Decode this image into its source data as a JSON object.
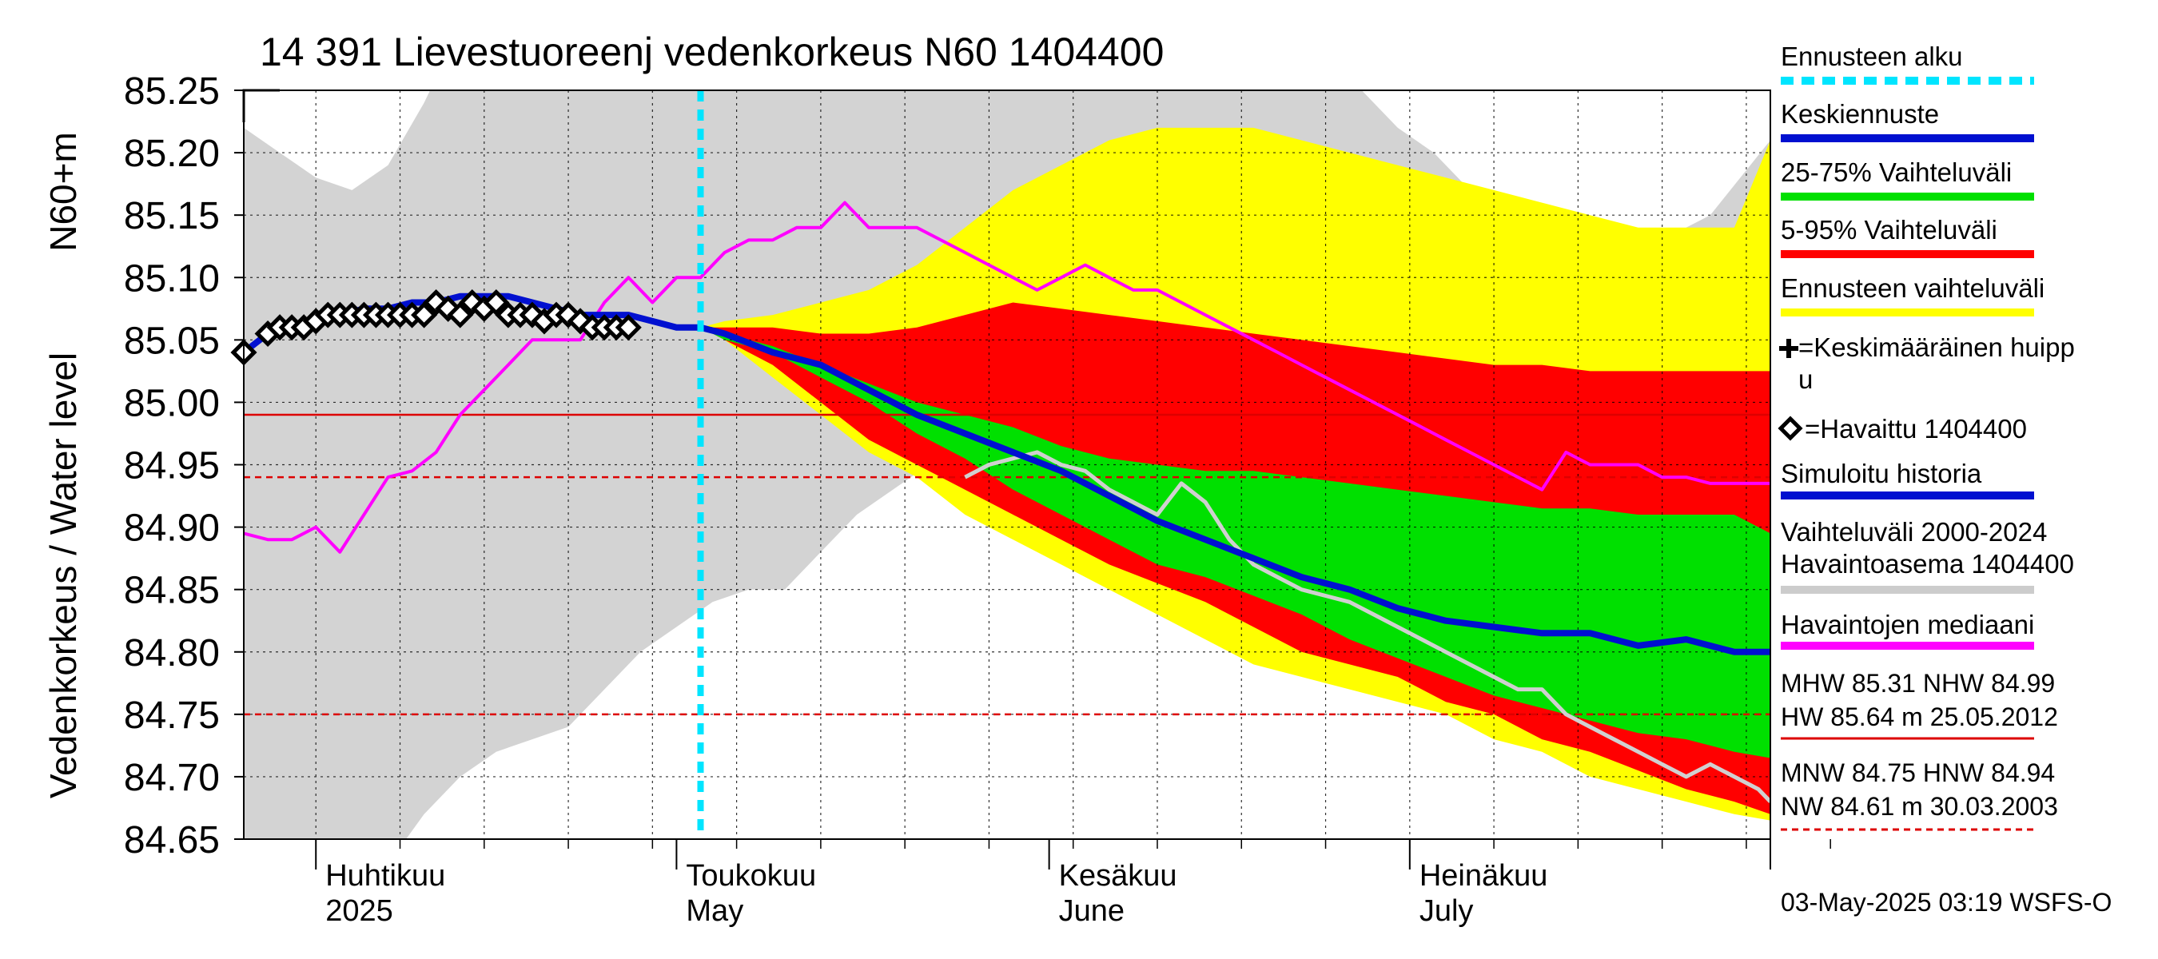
{
  "chart_data": {
    "type": "area",
    "title": "14 391 Lievestuoreenj vedenkorkeus N60 1404400",
    "ylabel": "Vedenkorkeus / Water level",
    "yunit": "N60+m",
    "ylim": [
      84.65,
      85.25
    ],
    "xlim": [
      "2025-03-26",
      "2025-07-31"
    ],
    "y_ticks": [
      "85.25",
      "85.20",
      "85.15",
      "85.10",
      "85.05",
      "85.00",
      "84.95",
      "84.90",
      "84.85",
      "84.80",
      "84.75",
      "84.70",
      "84.65"
    ],
    "month_labels": [
      {
        "date": "2025-04-01",
        "fi": "Huhtikuu",
        "en": "2025"
      },
      {
        "date": "2025-05-01",
        "fi": "Toukokuu",
        "en": "May"
      },
      {
        "date": "2025-06-01",
        "fi": "Kesäkuu",
        "en": "June"
      },
      {
        "date": "2025-07-01",
        "fi": "Heinäkuu",
        "en": "July"
      }
    ],
    "forecast_start": "2025-05-03",
    "grid": true,
    "legend_position": "right",
    "legend": [
      {
        "label": "Ennusteen alku",
        "color": "#00e5ff",
        "style": "dashed"
      },
      {
        "label": "Keskiennuste",
        "color": "#0010d0",
        "style": "solid"
      },
      {
        "label": "25-75% Vaihteluväli",
        "color": "#00e000",
        "style": "solid"
      },
      {
        "label": "5-95% Vaihteluväli",
        "color": "#ff0000",
        "style": "solid"
      },
      {
        "label": "Ennusteen vaihteluväli",
        "color": "#ffff00",
        "style": "solid"
      },
      {
        "label": "=Keskimääräinen huippu",
        "marker": "plus"
      },
      {
        "label": "=Havaittu 1404400",
        "marker": "diamond"
      },
      {
        "label": "Simuloitu historia",
        "color": "#0010d0",
        "style": "solid"
      },
      {
        "label": "Vaihteluväli 2000-2024 Havaintoasema 1404400",
        "color": "#cccccc",
        "style": "solid"
      },
      {
        "label": "Havaintojen mediaani",
        "color": "#ff00ff",
        "style": "solid"
      }
    ],
    "stats": {
      "line1": "MHW  85.31 NHW  84.99",
      "line2": "HW  85.64 m 25.05.2012",
      "line3": "MNW  84.75 HNW  84.94",
      "line4": "NW  84.61 m 30.03.2003"
    },
    "reference_lines": [
      {
        "name": "NHW",
        "value": 84.99,
        "color": "#dd0000",
        "style": "solid"
      },
      {
        "name": "HNW",
        "value": 84.94,
        "color": "#dd0000",
        "style": "dashed"
      },
      {
        "name": "MNW",
        "value": 84.75,
        "color": "#dd0000",
        "style": "dashed"
      }
    ],
    "footer": "03-May-2025 03:19 WSFS-O",
    "series": [
      {
        "name": "Vaihteluväli 2000-2024 Havaintoasema 1404400",
        "color": "#d3d3d3",
        "kind": "band",
        "x": [
          0,
          3,
          6,
          9,
          12,
          15,
          18,
          21,
          24,
          27,
          30,
          33,
          36,
          39,
          42,
          45,
          48,
          51,
          54,
          57,
          60,
          63,
          66,
          69,
          72,
          75,
          78,
          81,
          84,
          87,
          90,
          93,
          96,
          99,
          102,
          105,
          108,
          111,
          114,
          117,
          120,
          122,
          127
        ],
        "upper": [
          85.22,
          85.2,
          85.18,
          85.17,
          85.19,
          85.24,
          85.3,
          85.35,
          85.4,
          85.42,
          85.44,
          85.45,
          85.46,
          85.46,
          85.47,
          85.47,
          85.48,
          85.48,
          85.47,
          85.47,
          85.46,
          85.45,
          85.44,
          85.43,
          85.42,
          85.4,
          85.38,
          85.36,
          85.34,
          85.31,
          85.28,
          85.25,
          85.22,
          85.2,
          85.17,
          85.16,
          85.15,
          85.14,
          85.13,
          85.13,
          85.14,
          85.15,
          85.21
        ],
        "lower": [
          84.55,
          84.55,
          84.55,
          84.58,
          84.63,
          84.67,
          84.7,
          84.72,
          84.73,
          84.74,
          84.77,
          84.8,
          84.82,
          84.84,
          84.85,
          84.85,
          84.88,
          84.91,
          84.93,
          84.95,
          84.95,
          84.95,
          84.95,
          84.94,
          84.93,
          84.92,
          84.9,
          84.88,
          84.85,
          84.83,
          84.81,
          84.79,
          84.77,
          84.76,
          84.75,
          84.74,
          84.73,
          84.72,
          84.71,
          84.7,
          84.69,
          84.68,
          84.67
        ]
      },
      {
        "name": "Ennusteen vaihteluväli",
        "color": "#ffff00",
        "kind": "band",
        "x": [
          38,
          40,
          44,
          48,
          52,
          56,
          60,
          64,
          68,
          72,
          76,
          80,
          84,
          88,
          92,
          96,
          100,
          104,
          108,
          112,
          116,
          120,
          124,
          127
        ],
        "upper": [
          85.06,
          85.065,
          85.07,
          85.08,
          85.09,
          85.11,
          85.14,
          85.17,
          85.19,
          85.21,
          85.22,
          85.22,
          85.22,
          85.21,
          85.2,
          85.19,
          85.18,
          85.17,
          85.16,
          85.15,
          85.14,
          85.14,
          85.14,
          85.21
        ],
        "lower": [
          85.06,
          85.05,
          85.02,
          84.99,
          84.96,
          84.94,
          84.91,
          84.89,
          84.87,
          84.85,
          84.83,
          84.81,
          84.79,
          84.78,
          84.77,
          84.76,
          84.75,
          84.73,
          84.72,
          84.7,
          84.69,
          84.68,
          84.67,
          84.665
        ]
      },
      {
        "name": "5-95% Vaihteluväli",
        "color": "#ff0000",
        "kind": "band",
        "x": [
          38,
          40,
          44,
          48,
          52,
          56,
          60,
          64,
          68,
          72,
          76,
          80,
          84,
          88,
          92,
          96,
          100,
          104,
          108,
          112,
          116,
          120,
          124,
          127
        ],
        "upper": [
          85.06,
          85.06,
          85.06,
          85.055,
          85.055,
          85.06,
          85.07,
          85.08,
          85.075,
          85.07,
          85.065,
          85.06,
          85.055,
          85.05,
          85.045,
          85.04,
          85.035,
          85.03,
          85.03,
          85.025,
          85.025,
          85.025,
          85.025,
          85.025
        ],
        "lower": [
          85.06,
          85.05,
          85.03,
          85.0,
          84.97,
          84.95,
          84.93,
          84.91,
          84.89,
          84.87,
          84.855,
          84.84,
          84.82,
          84.8,
          84.79,
          84.78,
          84.76,
          84.75,
          84.73,
          84.72,
          84.705,
          84.69,
          84.68,
          84.67
        ]
      },
      {
        "name": "25-75% Vaihteluväli",
        "color": "#00e000",
        "kind": "band",
        "x": [
          38,
          40,
          44,
          48,
          52,
          56,
          60,
          64,
          68,
          72,
          76,
          80,
          84,
          88,
          92,
          96,
          100,
          104,
          108,
          112,
          116,
          120,
          124,
          127
        ],
        "upper": [
          85.06,
          85.055,
          85.045,
          85.03,
          85.015,
          85.0,
          84.99,
          84.98,
          84.965,
          84.955,
          84.95,
          84.945,
          84.945,
          84.94,
          84.935,
          84.93,
          84.925,
          84.92,
          84.915,
          84.915,
          84.91,
          84.91,
          84.91,
          84.895
        ],
        "lower": [
          85.06,
          85.05,
          85.04,
          85.02,
          85.0,
          84.975,
          84.955,
          84.93,
          84.91,
          84.89,
          84.87,
          84.86,
          84.845,
          84.83,
          84.81,
          84.795,
          84.78,
          84.765,
          84.755,
          84.745,
          84.735,
          84.73,
          84.72,
          84.715
        ]
      },
      {
        "name": "Havaintojen mediaani",
        "color": "#ff00ff",
        "kind": "line",
        "x": [
          0,
          2,
          4,
          6,
          8,
          10,
          12,
          14,
          16,
          18,
          20,
          22,
          24,
          26,
          28,
          30,
          32,
          34,
          36,
          38,
          40,
          42,
          44,
          46,
          48,
          50,
          52,
          54,
          56,
          58,
          60,
          62,
          64,
          66,
          68,
          70,
          72,
          74,
          76,
          78,
          80,
          82,
          84,
          86,
          88,
          90,
          92,
          94,
          96,
          98,
          100,
          102,
          104,
          106,
          108,
          110,
          112,
          114,
          116,
          118,
          120,
          122,
          124,
          126,
          127
        ],
        "y": [
          84.895,
          84.89,
          84.89,
          84.9,
          84.88,
          84.91,
          84.94,
          84.945,
          84.96,
          84.99,
          85.01,
          85.03,
          85.05,
          85.05,
          85.05,
          85.08,
          85.1,
          85.08,
          85.1,
          85.1,
          85.12,
          85.13,
          85.13,
          85.14,
          85.14,
          85.16,
          85.14,
          85.14,
          85.14,
          85.13,
          85.12,
          85.11,
          85.1,
          85.09,
          85.1,
          85.11,
          85.1,
          85.09,
          85.09,
          85.08,
          85.07,
          85.06,
          85.05,
          85.04,
          85.03,
          85.02,
          85.01,
          85.0,
          84.99,
          84.98,
          84.97,
          84.96,
          84.95,
          84.94,
          84.93,
          84.96,
          84.95,
          84.95,
          84.95,
          84.94,
          84.94,
          84.935,
          84.935,
          84.935,
          84.935
        ]
      },
      {
        "name": "Simuloitu historia",
        "color": "#0010d0",
        "kind": "line",
        "x": [
          0,
          2,
          4,
          6,
          8,
          10,
          12,
          14,
          16,
          18,
          20,
          22,
          24,
          26,
          28,
          30,
          32,
          34,
          36,
          38
        ],
        "y": [
          85.04,
          85.055,
          85.06,
          85.065,
          85.07,
          85.075,
          85.075,
          85.08,
          85.08,
          85.085,
          85.085,
          85.085,
          85.08,
          85.075,
          85.07,
          85.07,
          85.07,
          85.065,
          85.06,
          85.06
        ]
      },
      {
        "name": "Simuloitu historia (gray)",
        "color": "#d0d0d0",
        "kind": "line",
        "x": [
          60,
          62,
          64,
          66,
          68,
          70,
          72,
          74,
          76,
          78,
          80,
          82,
          84,
          86,
          88,
          90,
          92,
          94,
          96,
          98,
          100,
          102,
          104,
          106,
          108,
          110,
          112,
          114,
          116,
          118,
          120,
          122,
          124,
          126,
          127
        ],
        "y": [
          84.94,
          84.95,
          84.955,
          84.96,
          84.95,
          84.945,
          84.93,
          84.92,
          84.91,
          84.935,
          84.92,
          84.89,
          84.87,
          84.86,
          84.85,
          84.845,
          84.84,
          84.83,
          84.82,
          84.81,
          84.8,
          84.79,
          84.78,
          84.77,
          84.77,
          84.75,
          84.74,
          84.73,
          84.72,
          84.71,
          84.7,
          84.71,
          84.7,
          84.69,
          84.68
        ]
      },
      {
        "name": "Keskiennuste",
        "color": "#0010d0",
        "kind": "line",
        "x": [
          38,
          40,
          44,
          48,
          52,
          56,
          60,
          64,
          68,
          72,
          76,
          80,
          84,
          88,
          92,
          96,
          100,
          104,
          108,
          112,
          116,
          120,
          124,
          127
        ],
        "y": [
          85.06,
          85.055,
          85.04,
          85.03,
          85.01,
          84.99,
          84.975,
          84.96,
          84.945,
          84.925,
          84.905,
          84.89,
          84.875,
          84.86,
          84.85,
          84.835,
          84.825,
          84.82,
          84.815,
          84.815,
          84.805,
          84.81,
          84.8,
          84.8
        ]
      },
      {
        "name": "Havaittu 1404400",
        "color": "#000000",
        "kind": "markers",
        "x": [
          0,
          2,
          3,
          4,
          5,
          6,
          7,
          8,
          9,
          10,
          11,
          12,
          13,
          14,
          15,
          16,
          17,
          18,
          19,
          20,
          21,
          22,
          23,
          24,
          25,
          26,
          27,
          28,
          29,
          30,
          31,
          32
        ],
        "y": [
          85.04,
          85.055,
          85.06,
          85.06,
          85.06,
          85.065,
          85.07,
          85.07,
          85.07,
          85.07,
          85.07,
          85.07,
          85.07,
          85.07,
          85.07,
          85.08,
          85.075,
          85.07,
          85.08,
          85.075,
          85.08,
          85.07,
          85.07,
          85.07,
          85.065,
          85.07,
          85.07,
          85.065,
          85.06,
          85.06,
          85.06,
          85.06
        ]
      }
    ]
  }
}
